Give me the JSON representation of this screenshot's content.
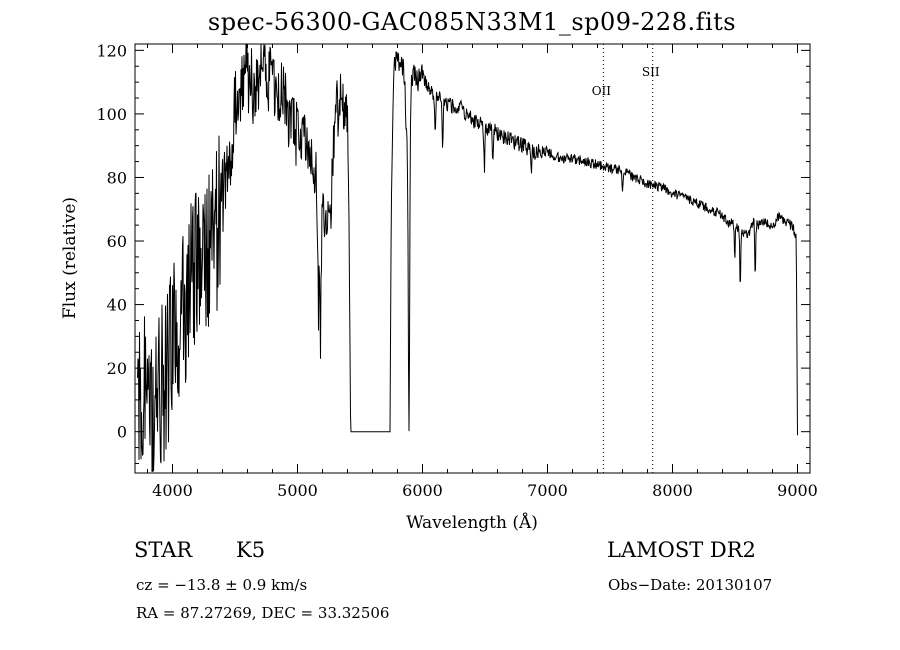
{
  "chart_data": {
    "type": "line",
    "title": "spec-56300-GAC085N33M1_sp09-228.fits",
    "xlabel": "Wavelength (Å)",
    "ylabel": "Flux (relative)",
    "xlim": [
      3700,
      9100
    ],
    "ylim": [
      -13,
      122
    ],
    "xticks": [
      4000,
      5000,
      6000,
      7000,
      8000,
      9000
    ],
    "yticks": [
      0,
      20,
      40,
      60,
      80,
      100,
      120
    ],
    "grid": false,
    "line_color": "#000000",
    "spectrum_anchors": {
      "x": [
        3720,
        3760,
        3800,
        3850,
        3900,
        3950,
        4000,
        4050,
        4100,
        4150,
        4200,
        4250,
        4300,
        4350,
        4400,
        4450,
        4500,
        4550,
        4600,
        4650,
        4700,
        4750,
        4800,
        4850,
        4900,
        4950,
        5000,
        5050,
        5100,
        5150,
        5180,
        5200,
        5230,
        5260,
        5300,
        5330,
        5360,
        5390,
        5400,
        5410,
        5425,
        5740,
        5750,
        5770,
        5800,
        5820,
        5840,
        5860,
        5870,
        5880,
        5890,
        5900,
        5910,
        5930,
        5960,
        6000,
        6050,
        6100,
        6150,
        6200,
        6300,
        6400,
        6500,
        6600,
        6700,
        6800,
        6900,
        7000,
        7100,
        7200,
        7300,
        7400,
        7500,
        7600,
        7700,
        7800,
        7900,
        8000,
        8100,
        8200,
        8300,
        8400,
        8450,
        8500,
        8550,
        8600,
        8650,
        8700,
        8750,
        8800,
        8850,
        8900,
        8950,
        8990,
        9000
      ],
      "y": [
        20,
        10,
        25,
        5,
        15,
        18,
        30,
        35,
        42,
        50,
        55,
        50,
        60,
        62,
        75,
        85,
        100,
        110,
        112,
        108,
        115,
        112,
        110,
        108,
        105,
        100,
        95,
        92,
        88,
        80,
        50,
        70,
        65,
        72,
        100,
        103,
        105,
        100,
        95,
        80,
        0,
        0,
        70,
        115,
        118,
        116,
        115,
        110,
        95,
        85,
        60,
        95,
        110,
        112,
        110,
        112,
        108,
        106,
        104,
        103,
        102,
        98,
        96,
        94,
        92,
        90,
        88,
        88,
        86,
        86,
        85,
        84,
        83,
        82,
        80,
        78,
        77,
        75,
        74,
        72,
        70,
        68,
        66,
        65,
        63,
        62,
        66,
        65,
        66,
        64,
        68,
        66,
        65,
        62,
        0
      ]
    },
    "absorption_lines": [
      {
        "x": 3933,
        "depth": 14
      },
      {
        "x": 3968,
        "depth": 12
      },
      {
        "x": 4101,
        "depth": 12
      },
      {
        "x": 4226,
        "depth": 22
      },
      {
        "x": 4340,
        "depth": 10
      },
      {
        "x": 4383,
        "depth": 12
      },
      {
        "x": 4861,
        "depth": 8
      },
      {
        "x": 5167,
        "depth": 22
      },
      {
        "x": 5184,
        "depth": 28
      },
      {
        "x": 5270,
        "depth": 12
      },
      {
        "x": 5328,
        "depth": 10
      },
      {
        "x": 5890,
        "depth": 45
      },
      {
        "x": 5896,
        "depth": 40
      },
      {
        "x": 6102,
        "depth": 12
      },
      {
        "x": 6162,
        "depth": 15
      },
      {
        "x": 6495,
        "depth": 14
      },
      {
        "x": 6563,
        "depth": 10
      },
      {
        "x": 6870,
        "depth": 6
      },
      {
        "x": 7600,
        "depth": 5
      },
      {
        "x": 8498,
        "depth": 10
      },
      {
        "x": 8542,
        "depth": 18
      },
      {
        "x": 8662,
        "depth": 16
      }
    ],
    "reference_lines": [
      {
        "label": "OII",
        "x": 7447,
        "label_y": 106
      },
      {
        "label": "SII",
        "x": 7842,
        "label_y": 112
      }
    ],
    "annotations": {
      "class": "STAR",
      "subclass": "K5",
      "survey": "LAMOST DR2",
      "cz": "cz = −13.8 ± 0.9 km/s",
      "obs_date": "Obs−Date: 20130107",
      "radec": "RA =  87.27269, DEC =  33.32506"
    }
  }
}
